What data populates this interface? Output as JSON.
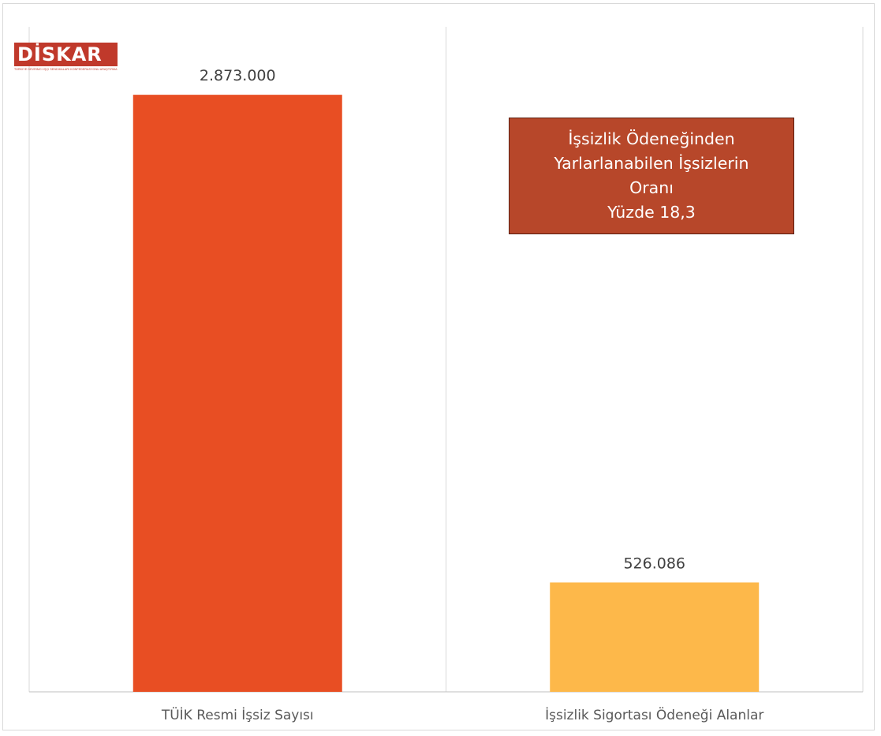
{
  "logo": {
    "text": "DİSKAR",
    "subtitle": "TÜRKİYE DEVRİMCİ İŞÇİ SENDİKALARI KONFEDERASYONU ARAŞTIRMA MERKEZİ"
  },
  "callout": {
    "lines": [
      "İşsizlik Ödeneğinden",
      "Yarlarlanabilen İşsizlerin",
      "Oranı",
      "Yüzde 18,3"
    ]
  },
  "colors": {
    "bar1": "#E84E23",
    "bar2": "#FDB84A",
    "callout_bg": "#B7472A",
    "logo": "#C0392B"
  },
  "chart_data": {
    "type": "bar",
    "categories": [
      "TÜİK Resmi İşsiz Sayısı",
      "İşsizlik Sigortası Ödeneği Alanlar"
    ],
    "values": [
      2873000,
      526086
    ],
    "data_labels": [
      "2.873.000",
      "526.086"
    ],
    "title": "",
    "xlabel": "",
    "ylabel": "",
    "ylim": [
      0,
      3200000
    ],
    "grid": "vertical category separators",
    "legend": "none"
  }
}
